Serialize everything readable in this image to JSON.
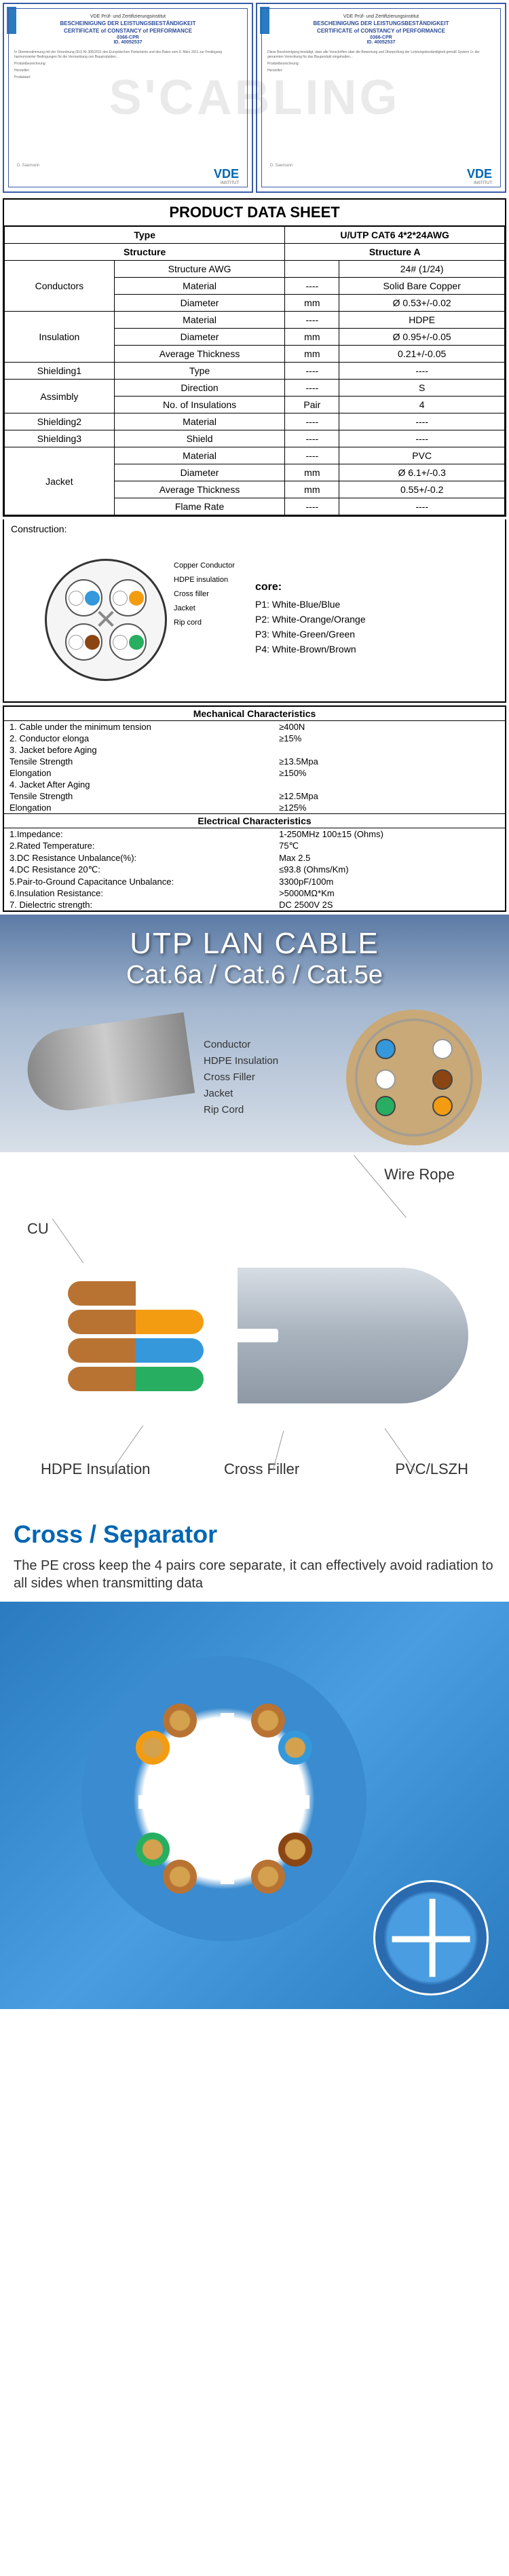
{
  "certificate": {
    "head": "VDE Prüf- und Zertifizierungsinstitut",
    "title": "BESCHEINIGUNG DER LEISTUNGSBESTÄNDIGKEIT",
    "title_en": "CERTIFICATE of CONSTANCY of PERFORMANCE",
    "ref": "0366-CPR",
    "id": "ID. 40052537",
    "sign": "D. Saemann",
    "vde": "VDE",
    "vde_sub": "INSTITUT",
    "date": "2020-10-23"
  },
  "watermark": "S'CABLING",
  "datasheet": {
    "title": "PRODUCT DATA SHEET",
    "cols": [
      "Type",
      "",
      "U/UTP CAT6 4*2*24AWG"
    ],
    "rows": [
      {
        "type": "header",
        "c1": "Structure",
        "c2": "",
        "c3": "Structure A"
      },
      {
        "group": "Conductors",
        "rowspan": 3,
        "rows": [
          {
            "label": "Structure AWG",
            "unit": "",
            "val": "24# (1/24)"
          },
          {
            "label": "Material",
            "unit": "----",
            "val": "Solid Bare Copper"
          },
          {
            "label": "Diameter",
            "unit": "mm",
            "val": "Ø 0.53+/-0.02"
          }
        ]
      },
      {
        "group": "Insulation",
        "rowspan": 3,
        "rows": [
          {
            "label": "Material",
            "unit": "----",
            "val": "HDPE"
          },
          {
            "label": "Diameter",
            "unit": "mm",
            "val": "Ø 0.95+/-0.05"
          },
          {
            "label": "Average Thickness",
            "unit": "mm",
            "val": "0.21+/-0.05"
          }
        ]
      },
      {
        "group": "Shielding1",
        "rowspan": 1,
        "rows": [
          {
            "label": "Type",
            "unit": "----",
            "val": "----"
          }
        ]
      },
      {
        "group": "Assimbly",
        "rowspan": 2,
        "rows": [
          {
            "label": "Direction",
            "unit": "----",
            "val": "S"
          },
          {
            "label": "No. of Insulations",
            "unit": "Pair",
            "val": "4"
          }
        ]
      },
      {
        "group": "Shielding2",
        "rowspan": 1,
        "rows": [
          {
            "label": "Material",
            "unit": "----",
            "val": "----"
          }
        ]
      },
      {
        "group": "Shielding3",
        "rowspan": 1,
        "rows": [
          {
            "label": "Shield",
            "unit": "----",
            "val": "----"
          }
        ]
      },
      {
        "group": "Jacket",
        "rowspan": 4,
        "rows": [
          {
            "label": "Material",
            "unit": "----",
            "val": "PVC"
          },
          {
            "label": "Diameter",
            "unit": "mm",
            "val": "Ø 6.1+/-0.3"
          },
          {
            "label": "Average Thickness",
            "unit": "mm",
            "val": "0.55+/-0.2"
          },
          {
            "label": "Flame Rate",
            "unit": "----",
            "val": "----"
          }
        ]
      }
    ],
    "construction_label": "Construction:"
  },
  "leaders": [
    "Copper Conductor",
    "HDPE insulation",
    "Cross filler",
    "Jacket",
    "Rip cord"
  ],
  "core_legend": {
    "title": "core:",
    "pairs": [
      "P1: White-Blue/Blue",
      "P2: White-Orange/Orange",
      "P3: White-Green/Green",
      "P4: White-Brown/Brown"
    ],
    "colors": {
      "p1a": "#ffffff",
      "p1b": "#3498db",
      "p2a": "#ffffff",
      "p2b": "#f39c12",
      "p3a": "#ffffff",
      "p3b": "#27ae60",
      "p4a": "#ffffff",
      "p4b": "#8b4513"
    }
  },
  "mechanical": {
    "title": "Mechanical Characteristics",
    "rows": [
      {
        "k": "1. Cable under the minimum tension",
        "v": "≥400N"
      },
      {
        "k": "2. Conductor elonga",
        "v": "≥15%"
      },
      {
        "k": "3. Jacket before Aging",
        "v": ""
      },
      {
        "k": "   Tensile Strength",
        "v": "≥13.5Mpa"
      },
      {
        "k": "   Elongation",
        "v": "≥150%"
      },
      {
        "k": "4. Jacket After Aging",
        "v": ""
      },
      {
        "k": "   Tensile Strength",
        "v": "≥12.5Mpa"
      },
      {
        "k": "   Elongation",
        "v": "≥125%"
      }
    ]
  },
  "electrical": {
    "title": "Electrical Characteristics",
    "rows": [
      {
        "k": "1.Impedance:",
        "v": "1-250MHz 100±15 (Ohms)"
      },
      {
        "k": "2.Rated Temperature:",
        "v": "75℃"
      },
      {
        "k": "3.DC Resistance Unbalance(%):",
        "v": "Max 2.5"
      },
      {
        "k": "4.DC Resistance 20℃:",
        "v": "≤93.8 (Ohms/Km)"
      },
      {
        "k": "5.Pair-to-Ground Capacitance Unbalance:",
        "v": "3300pF/100m"
      },
      {
        "k": "6.Insulation Resistance:",
        "v": ">5000MΩ*Km"
      },
      {
        "k": "7. Dielectric strength:",
        "v": "DC 2500V 2S"
      }
    ]
  },
  "utp": {
    "title": "UTP LAN CABLE",
    "subtitle": "Cat.6a / Cat.6 / Cat.5e",
    "callouts": [
      "Conductor",
      "HDPE Insulation",
      "Cross Filler",
      "Jacket",
      "Rip Cord"
    ]
  },
  "cutaway": {
    "labels": {
      "cu": "CU",
      "wire_rope": "Wire Rope",
      "hdpe": "HDPE Insulation",
      "cross_filler": "Cross Filler",
      "pvc": "PVC/LSZH"
    }
  },
  "separator": {
    "title": "Cross / Separator",
    "desc": "The PE cross keep the 4 pairs core separate, it can effectively avoid radiation to all sides when transmitting data"
  }
}
